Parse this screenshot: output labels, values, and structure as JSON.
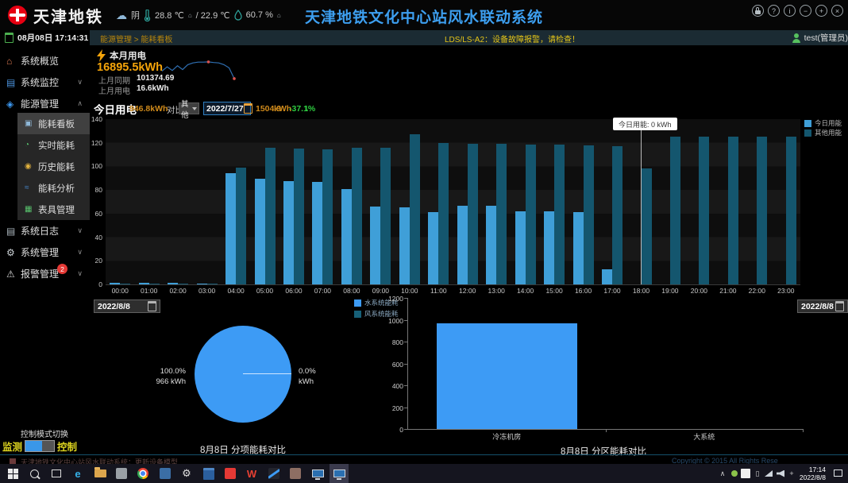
{
  "colors": {
    "accent_blue": "#3d9ff0",
    "orange": "#f5a40a",
    "alarm_yellow": "#e3c418",
    "delta_green": "#2ecc40",
    "bar_today": "#3f9fd8",
    "bar_other": "#14566e",
    "pie_blue": "#3d9bf5"
  },
  "header": {
    "logo_text": "天津地铁",
    "weather": {
      "condition": "阴",
      "temp_out": "28.8 ℃",
      "temp_in": "/ 22.9 ℃",
      "humidity": "60.7 %",
      "marker": "⌂"
    },
    "title": "天津地铁文化中心站风水联动系统",
    "window_controls": [
      {
        "name": "lock-icon",
        "kind": "lock",
        "glyph": ""
      },
      {
        "name": "help-icon",
        "kind": "glyph",
        "glyph": "?"
      },
      {
        "name": "info-icon",
        "kind": "glyph",
        "glyph": "i"
      },
      {
        "name": "minimize-icon",
        "kind": "glyph",
        "glyph": "−"
      },
      {
        "name": "maximize-icon",
        "kind": "glyph",
        "glyph": "+"
      },
      {
        "name": "close-icon",
        "kind": "glyph",
        "glyph": "×"
      }
    ]
  },
  "subheader": {
    "date": "08月08日 17:14:31",
    "breadcrumb": "能源管理 > 能耗看板",
    "alarm": "LDS/LS-A2：设备故障报警，请检查！",
    "user": "test(管理员)"
  },
  "sidebar": {
    "items_top": [
      {
        "name": "menu-system-overview",
        "label": "系统概览",
        "glyph": "⌂",
        "icon_color": "#e07b54",
        "chevron": ""
      },
      {
        "name": "menu-system-monitor",
        "label": "系统监控",
        "glyph": "▤",
        "icon_color": "#4a90d9",
        "chevron": "∨"
      },
      {
        "name": "menu-energy-mgmt",
        "label": "能源管理",
        "glyph": "◈",
        "icon_color": "#3d9bf5",
        "chevron": "∧"
      }
    ],
    "submenu": [
      {
        "name": "submenu-energy-dashboard",
        "label": "能耗看板",
        "glyph": "▣",
        "icon_color": "#8fb8d8",
        "selected": true
      },
      {
        "name": "submenu-realtime-energy",
        "label": "实时能耗",
        "glyph": "◔",
        "icon_color": "#58c16c",
        "selected": false
      },
      {
        "name": "submenu-history-energy",
        "label": "历史能耗",
        "glyph": "◉",
        "icon_color": "#e0b13e",
        "selected": false
      },
      {
        "name": "submenu-energy-analysis",
        "label": "能耗分析",
        "glyph": "≈",
        "icon_color": "#4a90d9",
        "selected": false
      },
      {
        "name": "submenu-meter-mgmt",
        "label": "表具管理",
        "glyph": "▦",
        "icon_color": "#58c16c",
        "selected": false
      }
    ],
    "items_bottom": [
      {
        "name": "menu-system-log",
        "label": "系统日志",
        "glyph": "▤",
        "icon_color": "#aab4bc",
        "chevron": "∨"
      },
      {
        "name": "menu-system-mgmt",
        "label": "系统管理",
        "glyph": "⚙",
        "icon_color": "#ccd2d6",
        "chevron": "∨"
      },
      {
        "name": "menu-alarm-mgmt",
        "label": "报警管理",
        "glyph": "⚠",
        "icon_color": "#d8d8d8",
        "chevron": "∨",
        "badge": "2"
      }
    ],
    "control": {
      "label": "控制模式切换",
      "left": "监测",
      "right": "控制"
    }
  },
  "stats": {
    "title": "本月用电",
    "value": "16895.5kWh",
    "row1_label": "上月同期",
    "row1_value": "101374.69",
    "row2_label": "上月用电",
    "row2_value": "16.6kWh"
  },
  "today": {
    "title": "今日用电",
    "value": "946.8kWh",
    "compare_label": "对比",
    "compare_option": "其他",
    "date": "2022/7/27",
    "compare_value": "1504.9",
    "compare_unit": "kWh",
    "delta": "-37.1%",
    "arrow": "↓"
  },
  "tooltip": {
    "text": "今日用能: 0  kWh"
  },
  "chart_data": [
    {
      "id": "hourly",
      "type": "bar",
      "title": "今日用电",
      "ylim": [
        0,
        140
      ],
      "yticks": [
        0,
        20,
        40,
        60,
        80,
        100,
        120,
        140
      ],
      "categories": [
        "00:00",
        "01:00",
        "02:00",
        "03:00",
        "04:00",
        "05:00",
        "06:00",
        "07:00",
        "08:00",
        "09:00",
        "10:00",
        "11:00",
        "12:00",
        "13:00",
        "14:00",
        "15:00",
        "16:00",
        "17:00",
        "18:00",
        "19:00",
        "20:00",
        "21:00",
        "22:00",
        "23:00"
      ],
      "series": [
        {
          "name": "今日用能",
          "color": "#3f9fd8",
          "values": [
            1.5,
            1.5,
            1.5,
            1,
            94,
            89.5,
            87.5,
            87,
            80.5,
            66,
            65.5,
            61.5,
            66.5,
            67,
            62,
            62,
            61.5,
            13,
            0,
            0,
            0,
            0,
            0,
            0
          ]
        },
        {
          "name": "其他用能",
          "color": "#14566e",
          "values": [
            1,
            1,
            1,
            1,
            99,
            116,
            115,
            114.5,
            116,
            116,
            127,
            120,
            119.5,
            119,
            118.5,
            118.5,
            117.5,
            117,
            98.5,
            125.5,
            125,
            125,
            125,
            125.5
          ]
        }
      ],
      "legend_position": "right",
      "pointer_at": "18:00",
      "grid": "zebra"
    },
    {
      "id": "month-trend",
      "type": "line",
      "color": "#2f6fb2",
      "values": [
        5,
        7,
        5.3,
        7.5,
        5.7,
        8,
        8.8,
        9.2,
        9.2,
        9.3,
        9,
        8.8,
        8,
        6.5,
        1.5
      ],
      "markers": [
        9,
        14
      ],
      "marker_color": "#d9534f"
    },
    {
      "id": "subsystem-pie",
      "type": "pie",
      "title": "8月8日 分项能耗对比",
      "slices": [
        {
          "name": "水系统能耗",
          "pct": 100.0,
          "label_pct": "100.0%",
          "label_val": "966 kWh",
          "color": "#3d9bf5"
        },
        {
          "name": "风系统能耗",
          "pct": 0.0,
          "label_pct": "0.0%",
          "label_val": "kWh",
          "color": "#176078"
        }
      ],
      "legend_position": "top-right"
    },
    {
      "id": "zone",
      "type": "bar",
      "title": "8月8日 分区能耗对比",
      "ylim": [
        0,
        1200
      ],
      "yticks": [
        0,
        200,
        400,
        600,
        800,
        1000,
        1200
      ],
      "categories": [
        "冷冻机房",
        "大系统"
      ],
      "values": [
        966,
        0
      ],
      "color": "#3d9bf5",
      "grid": "off"
    }
  ],
  "bottom_left": {
    "date": "2022/8/8",
    "title": "8月8日 分项能耗对比"
  },
  "bottom_right": {
    "date": "2022/8/8",
    "title": "8月8日 分区能耗对比"
  },
  "taskbar": {
    "background_title": "天津地铁文化中心站风水联动系统：更新设备模型...",
    "copyright": "Copyright © 2015 All Rights Rese",
    "icons": [
      {
        "name": "start-button",
        "kind": "start"
      },
      {
        "name": "search-button",
        "kind": "search"
      },
      {
        "name": "task-view-button",
        "kind": "taskview"
      },
      {
        "name": "ie-icon",
        "kind": "glyph",
        "glyph": "e",
        "color": "#35b1e8"
      },
      {
        "name": "file-explorer-icon",
        "kind": "folder"
      },
      {
        "name": "app-icon-1",
        "kind": "graysq"
      },
      {
        "name": "chrome-icon",
        "kind": "chrome"
      },
      {
        "name": "app-icon-2",
        "kind": "bluesq"
      },
      {
        "name": "settings-icon",
        "kind": "glyph",
        "glyph": "⚙",
        "color": "#e0e0e0"
      },
      {
        "name": "app-icon-3",
        "kind": "bluewin"
      },
      {
        "name": "app-icon-4",
        "kind": "redsq"
      },
      {
        "name": "wps-icon",
        "kind": "glyph",
        "glyph": "W",
        "color": "#e84033"
      },
      {
        "name": "app-icon-5",
        "kind": "darksq"
      },
      {
        "name": "app-icon-6",
        "kind": "tansq"
      },
      {
        "name": "app-icon-7",
        "kind": "monitor"
      },
      {
        "name": "active-app",
        "kind": "monitor",
        "active": true
      }
    ],
    "tray": [
      {
        "name": "tray-expand-icon",
        "kind": "glyph",
        "glyph": "∧",
        "color": "#cccccc"
      },
      {
        "name": "tray-green-icon",
        "kind": "dotgreen"
      },
      {
        "name": "tray-ime-icon",
        "kind": "imebox"
      },
      {
        "name": "tray-clipboard-icon",
        "kind": "glyph",
        "glyph": "▯",
        "color": "#cccccc"
      },
      {
        "name": "tray-network-icon",
        "kind": "network"
      },
      {
        "name": "tray-volume-icon",
        "kind": "volume"
      },
      {
        "name": "tray-move-icon",
        "kind": "glyph",
        "glyph": "+",
        "color": "#cccccc"
      }
    ],
    "time": "17:14",
    "date": "2022/8/8"
  }
}
